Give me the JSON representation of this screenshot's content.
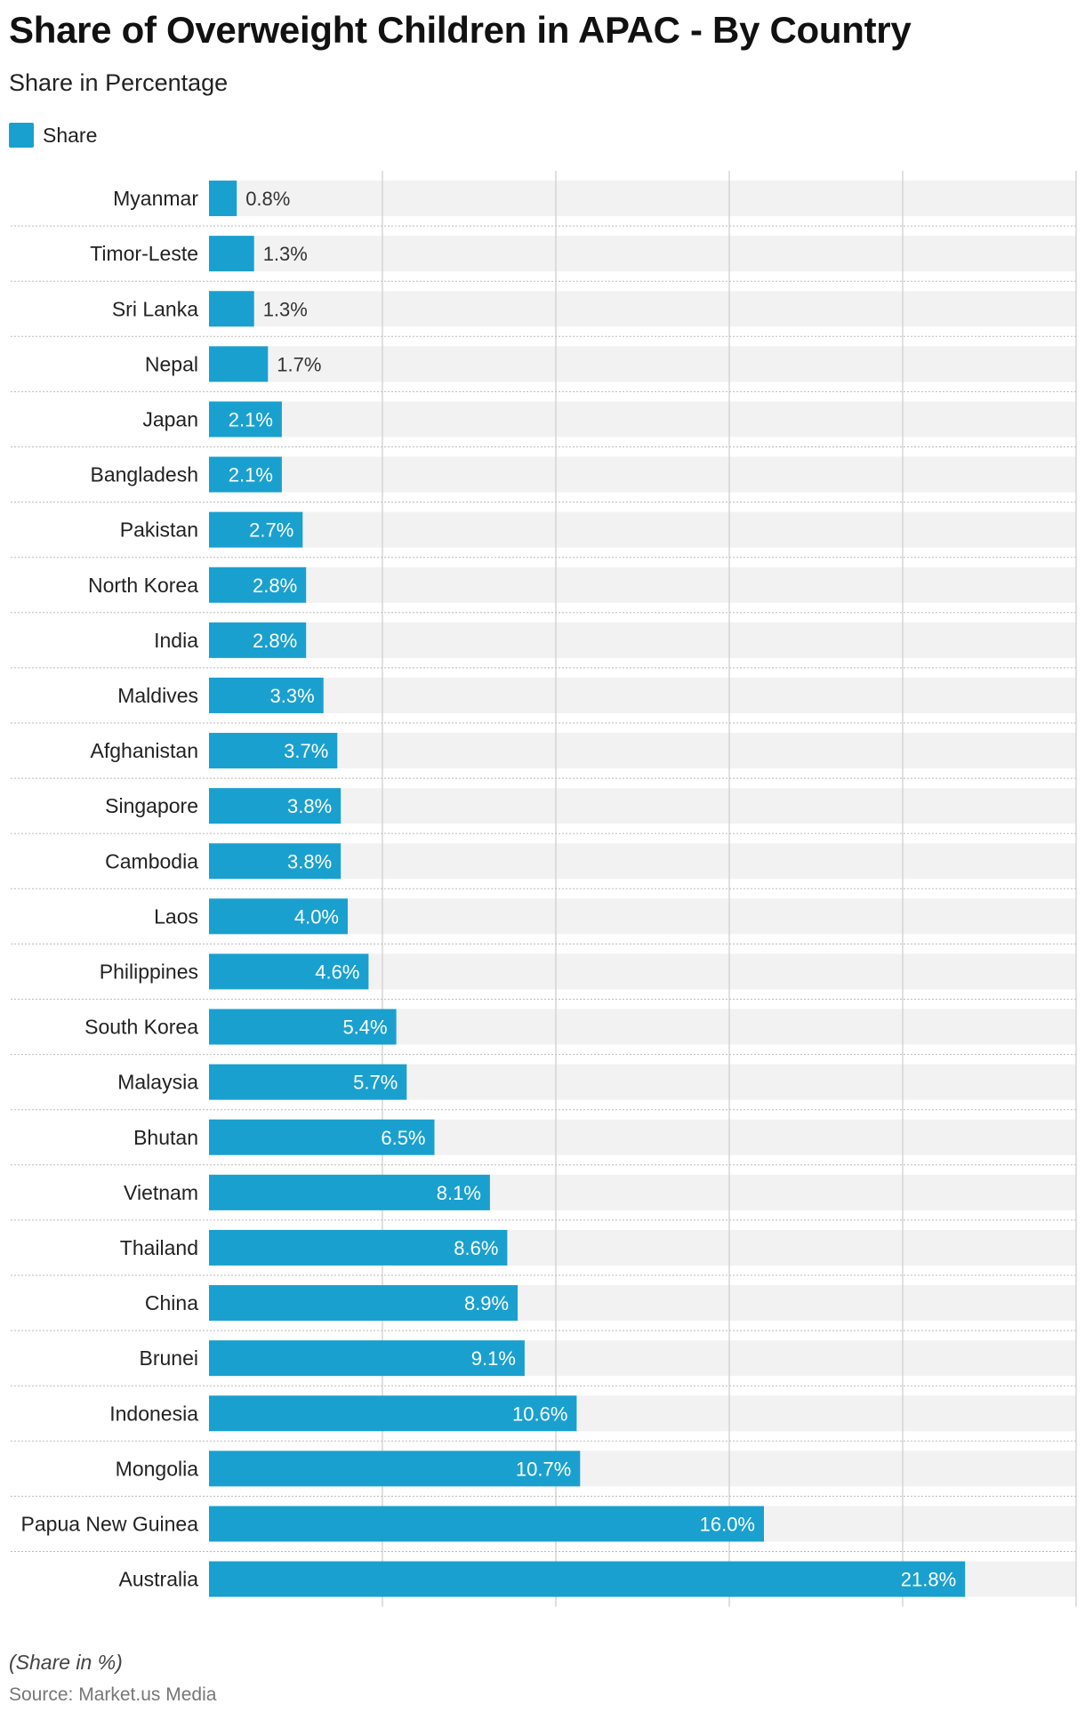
{
  "title": "Share of Overweight Children in APAC - By Country",
  "subtitle": "Share in Percentage",
  "legend": {
    "label": "Share",
    "color": "#1aa0cf"
  },
  "footnote": "(Share in %)",
  "source": "Source: Market.us Media",
  "chart_data": {
    "type": "bar",
    "orientation": "horizontal",
    "categories": [
      "Myanmar",
      "Timor-Leste",
      "Sri Lanka",
      "Nepal",
      "Japan",
      "Bangladesh",
      "Pakistan",
      "North Korea",
      "India",
      "Maldives",
      "Afghanistan",
      "Singapore",
      "Cambodia",
      "Laos",
      "Philippines",
      "South Korea",
      "Malaysia",
      "Bhutan",
      "Vietnam",
      "Thailand",
      "China",
      "Brunei",
      "Indonesia",
      "Mongolia",
      "Papua New Guinea",
      "Australia"
    ],
    "series": [
      {
        "name": "Share",
        "values": [
          0.8,
          1.3,
          1.3,
          1.7,
          2.1,
          2.1,
          2.7,
          2.8,
          2.8,
          3.3,
          3.7,
          3.8,
          3.8,
          4.0,
          4.6,
          5.4,
          5.7,
          6.5,
          8.1,
          8.6,
          8.9,
          9.1,
          10.6,
          10.7,
          16.0,
          21.8
        ]
      }
    ],
    "data_labels": [
      "0.8%",
      "1.3%",
      "1.3%",
      "1.7%",
      "2.1%",
      "2.1%",
      "2.7%",
      "2.8%",
      "2.8%",
      "3.3%",
      "3.7%",
      "3.8%",
      "3.8%",
      "4.0%",
      "4.6%",
      "5.4%",
      "5.7%",
      "6.5%",
      "8.1%",
      "8.6%",
      "8.9%",
      "9.1%",
      "10.6%",
      "10.7%",
      "16.0%",
      "21.8%"
    ],
    "xlim": [
      0,
      25
    ],
    "x_ticks": [
      "0%",
      "5%",
      "10%",
      "15%",
      "20%",
      "25%"
    ],
    "grid": true,
    "colors": {
      "bar": "#1aa0cf",
      "band": "#f2f2f2",
      "grid": "#cfcfcf"
    }
  }
}
